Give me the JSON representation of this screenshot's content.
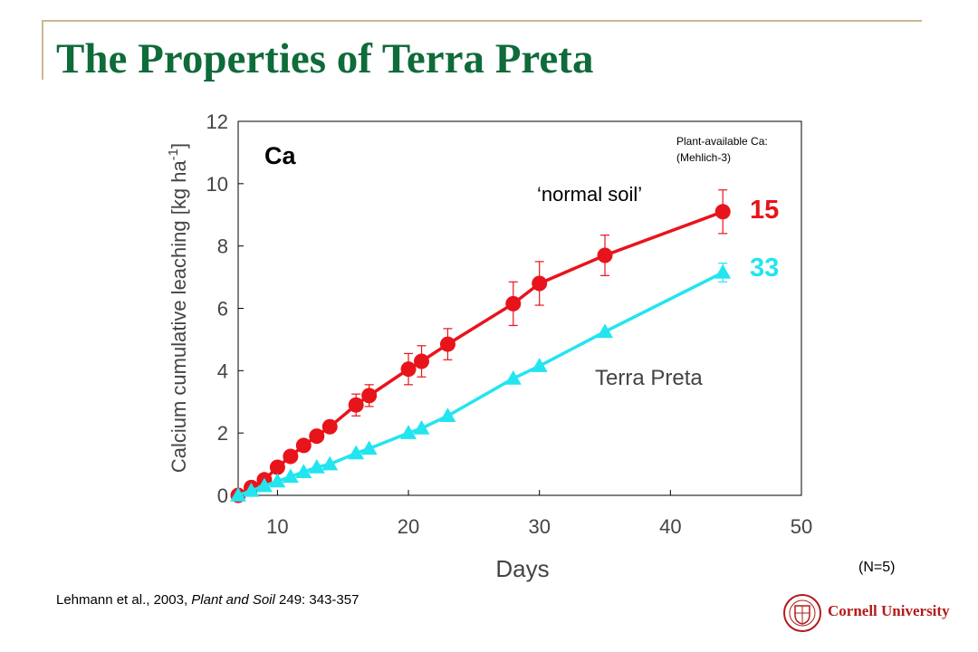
{
  "slide": {
    "title": "The Properties of Terra Preta",
    "citation_prefix": "Lehmann et al., 2003, ",
    "citation_journal": "Plant and Soil",
    "citation_suffix": " 249: 343-357",
    "n_note": "(N=5)",
    "logo_text": "Cornell University"
  },
  "colors": {
    "title": "#0e6b3a",
    "rule": "#c9b98e",
    "normal_soil": "#e8141b",
    "terra_preta": "#22e5f0",
    "logo": "#b31b1b"
  },
  "chart_data": {
    "type": "line",
    "panel_label": "Ca",
    "xlabel": "Days",
    "ylabel_main": "Calcium cumulative leaching [kg ha",
    "ylabel_sup": "-1",
    "ylabel_end": "]",
    "xlim": [
      7,
      50
    ],
    "ylim": [
      0,
      12
    ],
    "xticks": [
      10,
      20,
      30,
      40,
      50
    ],
    "yticks": [
      0,
      2,
      4,
      6,
      8,
      10,
      12
    ],
    "grid": false,
    "annotations": {
      "plant_available_line1": "Plant-available Ca:",
      "plant_available_line2": "(Mehlich-3)"
    },
    "series": [
      {
        "name": "‘normal soil’",
        "value_label": "15",
        "marker": "circle",
        "color": "#e8141b",
        "x": [
          7,
          8,
          9,
          10,
          11,
          12,
          13,
          14,
          16,
          17,
          20,
          21,
          23,
          28,
          30,
          35,
          44
        ],
        "y": [
          0,
          0.25,
          0.5,
          0.9,
          1.25,
          1.6,
          1.9,
          2.2,
          2.9,
          3.2,
          4.05,
          4.3,
          4.85,
          6.15,
          6.8,
          7.7,
          9.1
        ],
        "err": [
          0,
          0,
          0,
          0,
          0,
          0,
          0,
          0,
          0.35,
          0.35,
          0.5,
          0.5,
          0.5,
          0.7,
          0.7,
          0.65,
          0.7
        ]
      },
      {
        "name": "Terra Preta",
        "value_label": "33",
        "marker": "triangle",
        "color": "#22e5f0",
        "x": [
          7,
          8,
          9,
          10,
          11,
          12,
          13,
          14,
          16,
          17,
          20,
          21,
          23,
          28,
          30,
          35,
          44
        ],
        "y": [
          0,
          0.15,
          0.3,
          0.45,
          0.6,
          0.75,
          0.9,
          1.0,
          1.35,
          1.5,
          2.0,
          2.15,
          2.55,
          3.75,
          4.15,
          5.25,
          7.15
        ],
        "err": [
          0,
          0,
          0,
          0,
          0,
          0,
          0,
          0,
          0,
          0,
          0,
          0,
          0,
          0,
          0,
          0,
          0.3
        ]
      }
    ]
  }
}
